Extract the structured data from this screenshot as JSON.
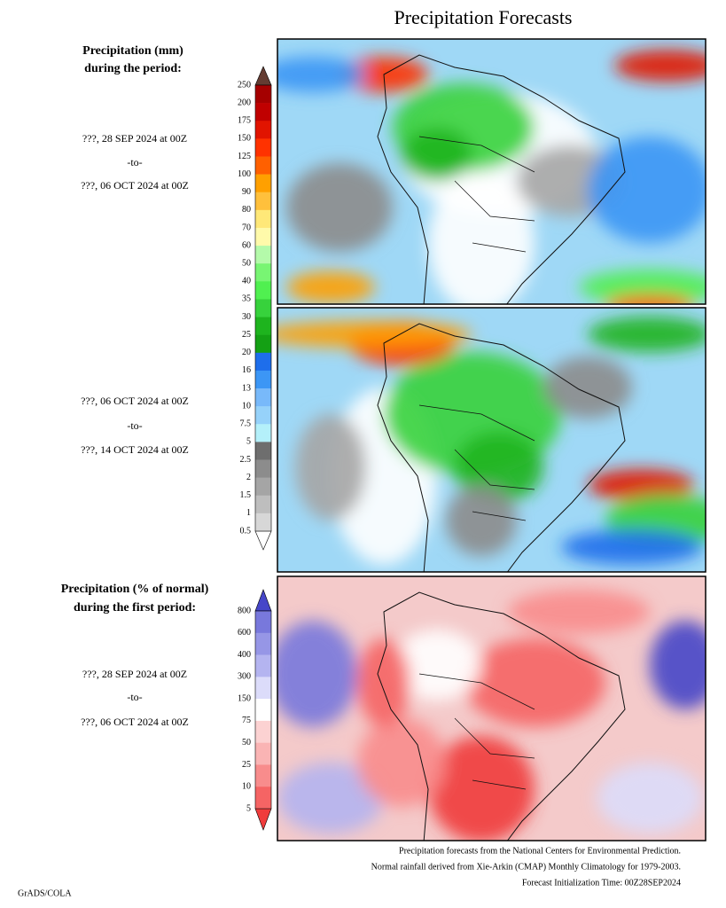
{
  "header": {
    "title": "Precipitation Forecasts"
  },
  "legend_mm": {
    "title_lines": [
      "Precipitation (mm)",
      "during the period:"
    ],
    "levels": [
      250,
      200,
      175,
      150,
      125,
      100,
      90,
      80,
      70,
      60,
      50,
      40,
      35,
      30,
      25,
      20,
      16,
      13,
      10,
      7.5,
      5,
      2.5,
      2,
      1.5,
      1,
      0.5
    ],
    "colors": [
      "#ffffff",
      "#d7d7d7",
      "#bebebe",
      "#a5a5a5",
      "#8c8c8c",
      "#6e6e6e",
      "#b4f0fa",
      "#96d2fa",
      "#78b9fa",
      "#3c96f5",
      "#1e6eeb",
      "#14a014",
      "#1eb41e",
      "#37d23c",
      "#50f050",
      "#78f573",
      "#b4faaa",
      "#fffaaa",
      "#ffe878",
      "#ffc03c",
      "#ffa000",
      "#ff6000",
      "#ff3200",
      "#e11400",
      "#c00000",
      "#a50000",
      "#643c32"
    ]
  },
  "legend_pct": {
    "title_lines": [
      "Precipitation (% of normal)",
      "during the first period:"
    ],
    "levels": [
      800,
      600,
      400,
      300,
      150,
      75,
      50,
      25,
      10,
      5
    ],
    "colors": [
      "#f03c3c",
      "#f56464",
      "#f88c8c",
      "#fab4b4",
      "#fcd2d2",
      "#ffffff",
      "#dcdcfa",
      "#b4b4f0",
      "#9696e6",
      "#7878dc",
      "#4646c8"
    ]
  },
  "periods": [
    {
      "from": "???, 28 SEP 2024 at 00Z",
      "sep": "-to-",
      "to": "???, 06 OCT 2024 at 00Z"
    },
    {
      "from": "???, 06 OCT 2024 at 00Z",
      "sep": "-to-",
      "to": "???, 14 OCT 2024 at 00Z"
    },
    {
      "from": "???, 28 SEP 2024 at 00Z",
      "sep": "-to-",
      "to": "???, 06 OCT 2024 at 00Z"
    }
  ],
  "footer": {
    "lines": [
      "Precipitation forecasts from the National Centers for Environmental Prediction.",
      "Normal rainfall derived from Xie-Arkin (CMAP) Monthly Climatology for 1979-2003.",
      "Forecast Initialization Time: 00Z28SEP2024"
    ],
    "credit": "GrADS/COLA"
  }
}
